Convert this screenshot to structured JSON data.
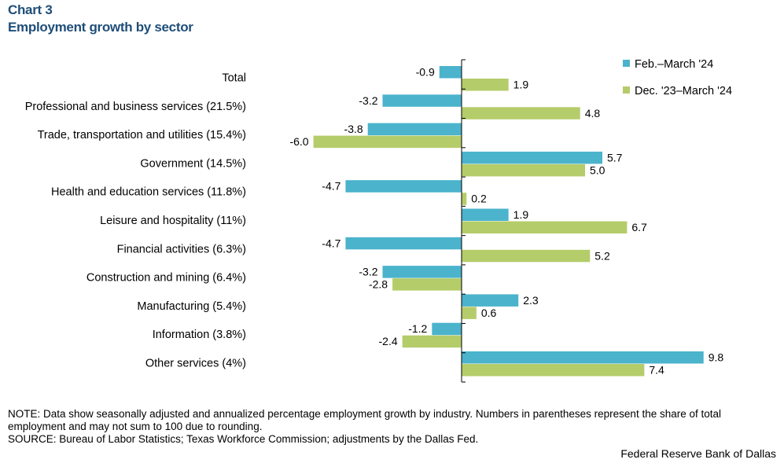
{
  "header": {
    "chart_number": "Chart 3",
    "title": "Employment growth by sector"
  },
  "colors": {
    "series1": "#4bb3cc",
    "series2": "#b5cc6a",
    "axis": "#000000"
  },
  "chart_data": {
    "type": "bar",
    "orientation": "horizontal",
    "title": "Employment growth by sector",
    "xlim": [
      -6.0,
      9.8
    ],
    "legend_position": "top-right",
    "categories": [
      "Total",
      "Professional and business services (21.5%)",
      "Trade, transportation and utilities (15.4%)",
      "Government (14.5%)",
      "Health and education services (11.8%)",
      "Leisure and hospitality  (11%)",
      "Financial activities (6.3%)",
      "Construction and mining (6.4%)",
      "Manufacturing (5.4%)",
      "Information (3.8%)",
      "Other services (4%)"
    ],
    "series": [
      {
        "name": "Feb.–March '24",
        "values": [
          -0.9,
          -3.2,
          -3.8,
          5.7,
          -4.7,
          1.9,
          -4.7,
          -3.2,
          2.3,
          -1.2,
          9.8
        ],
        "labels": [
          "-0.9",
          "-3.2",
          "-3.8",
          "5.7",
          "-4.7",
          "1.9",
          "-4.7",
          "-3.2",
          "2.3",
          "-1.2",
          "9.8"
        ]
      },
      {
        "name": "Dec. '23–March '24",
        "values": [
          1.9,
          4.8,
          -6.0,
          5.0,
          0.2,
          6.7,
          5.2,
          -2.8,
          0.6,
          -2.4,
          7.4
        ],
        "labels": [
          "1.9",
          "4.8",
          "-6.0",
          "5.0",
          "0.2",
          "6.7",
          "5.2",
          "-2.8",
          "0.6",
          "-2.4",
          "7.4"
        ]
      }
    ]
  },
  "footer": {
    "note": "NOTE: Data show seasonally adjusted and annualized percentage employment growth by industry. Numbers in parentheses represent the share of total employment and may not sum to 100 due to rounding.",
    "source": "SOURCE: Bureau of Labor Statistics; Texas Workforce Commission; adjustments by the Dallas Fed.",
    "credit": "Federal Reserve Bank of Dallas"
  }
}
